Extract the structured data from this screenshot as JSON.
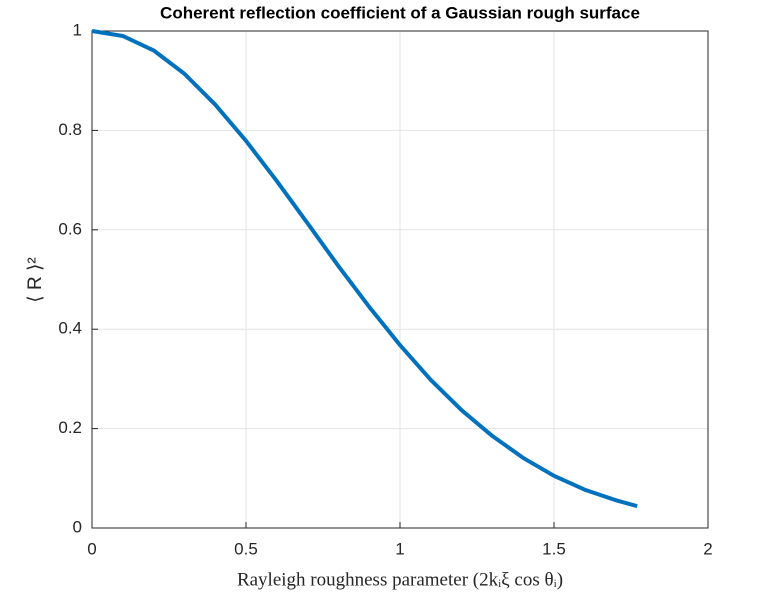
{
  "chart_data": {
    "type": "line",
    "title": "Coherent reflection coefficient of a Gaussian rough surface",
    "x_label": "Rayleigh roughness parameter (2kᵢξ cos θᵢ)",
    "y_label": "⟨ R ⟩²",
    "x": [
      0,
      0.1,
      0.2,
      0.3,
      0.4,
      0.5,
      0.6,
      0.7,
      0.8,
      0.9,
      1.0,
      1.1,
      1.2,
      1.3,
      1.4,
      1.5,
      1.6,
      1.7,
      1.77
    ],
    "series": [
      {
        "name": "⟨ R ⟩²",
        "color": "#0072bd",
        "values": [
          1,
          0.99,
          0.961,
          0.914,
          0.852,
          0.779,
          0.698,
          0.613,
          0.527,
          0.445,
          0.368,
          0.298,
          0.237,
          0.185,
          0.141,
          0.105,
          0.077,
          0.056,
          0.044
        ]
      }
    ],
    "xlim": [
      0,
      2
    ],
    "xticks": [
      0,
      0.5,
      1,
      1.5,
      2
    ],
    "ylim": [
      0,
      1
    ],
    "yticks": [
      0,
      0.2,
      0.4,
      0.6,
      0.8,
      1
    ],
    "grid": true
  }
}
